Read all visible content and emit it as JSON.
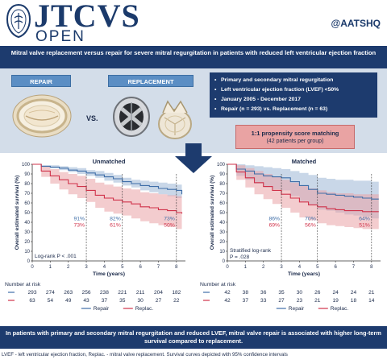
{
  "header": {
    "journal_title": "JTCVS",
    "journal_subtitle": "OPEN",
    "handle": "@AATSHQ"
  },
  "title": "Mitral valve replacement versus repair for severe mitral regurgitation in patients with reduced left ventricular ejection fraction",
  "groups": {
    "repair_label": "REPAIR",
    "replacement_label": "REPLACEMENT",
    "vs_label": "VS."
  },
  "info": {
    "items": [
      "Primary and secondary mitral regurgitation",
      "Left ventricular ejection fraction (LVEF) <50%",
      "January 2005 - December 2017",
      "Repair (n = 293) vs. Replacement (n = 63)"
    ]
  },
  "psm": {
    "title": "1:1 propensity score matching",
    "subtitle": "(42 patients per group)"
  },
  "colors": {
    "navy": "#1d3b6e",
    "repair": "#3f6ea8",
    "replacement": "#d0324a",
    "repair_band": "#9db7d6",
    "replacement_band": "#eaa2a6"
  },
  "chart_data": [
    {
      "type": "line",
      "title": "Unmatched",
      "xlabel": "Time (years)",
      "ylabel": "Overall estimated survival (%)",
      "xlim": [
        0,
        8.5
      ],
      "ylim": [
        0,
        100
      ],
      "x_ticks": [
        0,
        1,
        2,
        3,
        4,
        5,
        6,
        7,
        8
      ],
      "y_ticks": [
        0,
        10,
        20,
        30,
        40,
        50,
        60,
        70,
        80,
        90,
        100
      ],
      "series": [
        {
          "name": "Repair",
          "x": [
            0,
            0.5,
            1,
            1.5,
            2,
            2.5,
            3,
            3.5,
            4,
            4.5,
            5,
            5.5,
            6,
            6.5,
            7,
            7.5,
            8,
            8.3
          ],
          "y": [
            100,
            98,
            97,
            96,
            94,
            93,
            91,
            89,
            87,
            85,
            82,
            80,
            78,
            77,
            75,
            74,
            73,
            69
          ],
          "lower": [
            100,
            97,
            96,
            94,
            92,
            90,
            88,
            86,
            83,
            81,
            78,
            76,
            73,
            71,
            69,
            67,
            65,
            60
          ],
          "upper": [
            100,
            99,
            99,
            98,
            97,
            96,
            94,
            93,
            91,
            89,
            86,
            84,
            83,
            82,
            81,
            80,
            79,
            76
          ]
        },
        {
          "name": "Replac.",
          "x": [
            0,
            0.5,
            1,
            1.5,
            2,
            2.5,
            3,
            3.5,
            4,
            4.5,
            5,
            5.5,
            6,
            6.5,
            7,
            7.5,
            8,
            8.3
          ],
          "y": [
            100,
            93,
            88,
            84,
            80,
            77,
            73,
            68,
            65,
            63,
            61,
            59,
            56,
            55,
            53,
            52,
            50,
            49
          ],
          "lower": [
            100,
            87,
            80,
            74,
            69,
            65,
            61,
            55,
            51,
            49,
            47,
            44,
            41,
            39,
            37,
            35,
            33,
            31
          ],
          "upper": [
            100,
            98,
            95,
            92,
            90,
            88,
            85,
            81,
            79,
            77,
            75,
            74,
            71,
            70,
            69,
            68,
            67,
            66
          ]
        }
      ],
      "annotations": [
        {
          "x": 3,
          "repair": "91%",
          "replac": "73%"
        },
        {
          "x": 5,
          "repair": "82%",
          "replac": "61%"
        },
        {
          "x": 8,
          "repair": "73%",
          "replac": "50%"
        }
      ],
      "stat_text": "Log-rank P < .001",
      "risk_title": "Number at risk",
      "risk_x": [
        0,
        1,
        2,
        3,
        4,
        5,
        6,
        7,
        8
      ],
      "risk_repair": [
        "293",
        "274",
        "263",
        "256",
        "238",
        "221",
        "211",
        "204",
        "182"
      ],
      "risk_replac": [
        "63",
        "54",
        "49",
        "43",
        "37",
        "35",
        "30",
        "27",
        "22"
      ]
    },
    {
      "type": "line",
      "title": "Matched",
      "xlabel": "Time (years)",
      "ylabel": "Overall estimated survival (%)",
      "xlim": [
        0,
        8.5
      ],
      "ylim": [
        0,
        100
      ],
      "x_ticks": [
        0,
        1,
        2,
        3,
        4,
        5,
        6,
        7,
        8
      ],
      "y_ticks": [
        0,
        10,
        20,
        30,
        40,
        50,
        60,
        70,
        80,
        90,
        100
      ],
      "series": [
        {
          "name": "Repair",
          "x": [
            0,
            0.5,
            1,
            1.5,
            2,
            2.5,
            3,
            3.5,
            4,
            4.5,
            5,
            5.5,
            6,
            6.5,
            7,
            7.5,
            8,
            8.4
          ],
          "y": [
            100,
            95,
            93,
            90,
            88,
            87,
            86,
            82,
            78,
            74,
            70,
            69,
            68,
            67,
            66,
            65,
            64,
            64
          ],
          "lower": [
            100,
            88,
            84,
            80,
            76,
            74,
            73,
            67,
            62,
            58,
            53,
            52,
            50,
            48,
            47,
            46,
            44,
            44
          ],
          "upper": [
            100,
            100,
            99,
            98,
            97,
            96,
            95,
            93,
            91,
            89,
            86,
            85,
            84,
            84,
            83,
            83,
            82,
            82
          ]
        },
        {
          "name": "Replac.",
          "x": [
            0,
            0.5,
            1,
            1.5,
            2,
            2.5,
            3,
            3.5,
            4,
            4.5,
            5,
            5.5,
            6,
            6.5,
            7,
            7.5,
            8,
            8.4
          ],
          "y": [
            100,
            92,
            86,
            81,
            77,
            73,
            69,
            65,
            61,
            58,
            56,
            54,
            53,
            52,
            52,
            51,
            51,
            51
          ],
          "lower": [
            100,
            84,
            76,
            69,
            64,
            59,
            55,
            50,
            45,
            42,
            39,
            37,
            36,
            35,
            34,
            33,
            33,
            33
          ],
          "upper": [
            100,
            99,
            96,
            93,
            90,
            87,
            84,
            81,
            78,
            75,
            73,
            71,
            70,
            70,
            69,
            69,
            69,
            69
          ]
        }
      ],
      "annotations": [
        {
          "x": 3,
          "repair": "86%",
          "replac": "69%"
        },
        {
          "x": 5,
          "repair": "70%",
          "replac": "56%"
        },
        {
          "x": 8,
          "repair": "64%",
          "replac": "51%"
        }
      ],
      "stat_text": "Stratified log-rank",
      "stat_text_2": "P = .028",
      "risk_title": "Number at risk",
      "risk_x": [
        0,
        1,
        2,
        3,
        4,
        5,
        6,
        7,
        8
      ],
      "risk_repair": [
        "42",
        "38",
        "36",
        "35",
        "30",
        "26",
        "24",
        "24",
        "21"
      ],
      "risk_replac": [
        "42",
        "37",
        "33",
        "27",
        "23",
        "21",
        "19",
        "18",
        "14"
      ]
    }
  ],
  "legend": {
    "repair": "Repair",
    "replac": "Replac."
  },
  "conclusion": "In patients with primary and secondary mitral regurgitation and reduced LVEF, mitral valve repair is associated with higher long-term survival compared to replacement.",
  "footnote": "LVEF - left ventricular ejection fraction, Replac. - mitral valve replacement. Survival curves depicted with 95% confidence intervals"
}
